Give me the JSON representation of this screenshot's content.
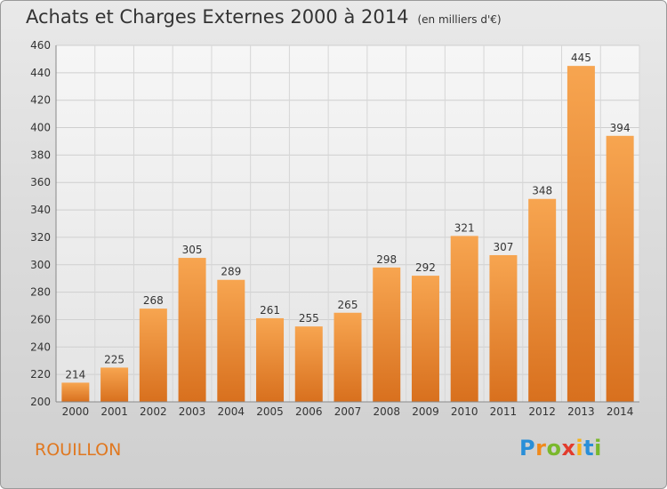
{
  "header": {
    "title": "Achats et Charges Externes 2000 à 2014",
    "subtitle": "(en milliers d'€)"
  },
  "footer": {
    "place": "ROUILLON",
    "logo_letters": [
      "P",
      "r",
      "o",
      "x",
      "i",
      "t",
      "i"
    ],
    "logo_colors": [
      "#2a8fd8",
      "#f08a1c",
      "#7ab82c",
      "#e23b2c",
      "#f6b21a",
      "#2a8fd8",
      "#7ab82c"
    ]
  },
  "chart_data": {
    "type": "bar",
    "title": "Achats et Charges Externes 2000 à 2014",
    "subtitle": "(en milliers d'€)",
    "categories": [
      "2000",
      "2001",
      "2002",
      "2003",
      "2004",
      "2005",
      "2006",
      "2007",
      "2008",
      "2009",
      "2010",
      "2011",
      "2012",
      "2013",
      "2014"
    ],
    "values": [
      214,
      225,
      268,
      305,
      289,
      261,
      255,
      265,
      298,
      292,
      321,
      307,
      348,
      445,
      394
    ],
    "ylim": [
      200,
      460
    ],
    "yticks": [
      200,
      220,
      240,
      260,
      280,
      300,
      320,
      340,
      360,
      380,
      400,
      420,
      440,
      460
    ],
    "grid": true,
    "legend": "none",
    "bar_color_top": "#f7a550",
    "bar_color_bottom": "#d8701e"
  }
}
